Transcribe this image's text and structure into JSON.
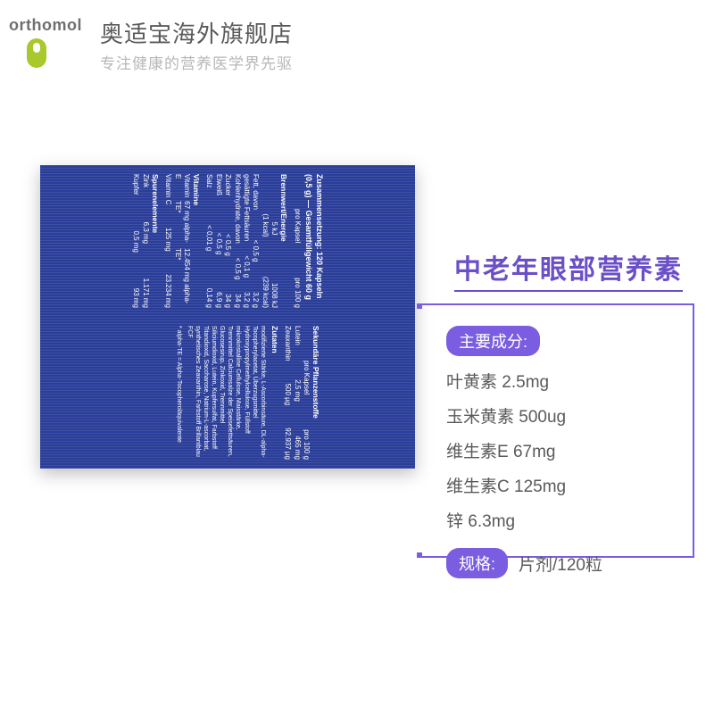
{
  "header": {
    "brand": "orthomol",
    "store_name": "奥适宝海外旗舰店",
    "tagline": "专注健康的营养医学界先驱"
  },
  "product_title": "中老年眼部营养素",
  "panel": {
    "ingredients_label": "主要成分:",
    "ingredients": [
      "叶黄素 2.5mg",
      "玉米黄素 500ug",
      "维生素E 67mg",
      "维生素C 125mg",
      "锌 6.3mg"
    ],
    "spec_label": "规格:",
    "spec_value": "片剂/120粒"
  },
  "nutrition_label": {
    "title": "Zusammensetzung: 120 Kapseln (0,5 g) — Gesamtfüllgewicht 60 g",
    "cols": [
      "",
      "pro Kapsel",
      "pro 100 g"
    ],
    "energy_header": "Brennwert/Energie",
    "energy": [
      [
        "",
        "5 kJ",
        "1008 kJ"
      ],
      [
        "",
        "(1 kcal)",
        "(239 kcal)"
      ]
    ],
    "rows": [
      [
        "Fett, davon",
        "< 0,5 g",
        "3,2 g"
      ],
      [
        "gesättigte Fettsäuren",
        "< 0,1 g",
        "3,2 g"
      ],
      [
        "Kohlenhydrate, davon",
        "< 0,5 g",
        "34 g"
      ],
      [
        "Zucker",
        "< 0,5 g",
        "34 g"
      ],
      [
        "Eiweiß",
        "< 0,5 g",
        "6,9 g"
      ],
      [
        "Salz",
        "< 0,01 g",
        "0,14 g"
      ]
    ],
    "vitamins_header": "Vitamine",
    "vitamins": [
      [
        "Vitamin E",
        "67 mg alpha-TE*",
        "12.454 mg alpha-TE*"
      ],
      [
        "Vitamin C",
        "125 mg",
        "23.234 mg"
      ]
    ],
    "trace_header": "Spurenelemente",
    "trace": [
      [
        "Zink",
        "6,3 mg",
        "1.171 mg"
      ],
      [
        "Kupfer",
        "0,5 mg",
        "93 mg"
      ]
    ],
    "secondary_header": "Sekundäre Pflanzenstoffe",
    "secondary_cols": [
      "",
      "pro Kapsel",
      "pro 100 g"
    ],
    "secondary": [
      [
        "Lutein",
        "2,5 mg",
        "465 mg"
      ],
      [
        "Zeaxanthin",
        "500 µg",
        "92.937 µg"
      ]
    ],
    "zutaten_header": "Zutaten",
    "zutaten": "modifizierte Stärke, L-Ascorbinsäure, DL-alpha-Tocopherylacetat, Überzugsmittel Hydroxypropylmethylcellulose, Füllstoff mikrokristalline Cellulose, Maisstärke, Trennmittel Calciumsalze der Speisefettsäuren, Glucosesirup, Zinkoxid, Trennmittel Siliciumdioxid, Lutein, Kupfersulfat, Farbstoff Titandioxid, Saccharose, Natrium-L-ascorbat, synthetisches Zeaxanthin, Farbstoff Brillantblau FCF",
    "footnote": "* alpha-TE = Alpha-Tocopheroläquivalente"
  },
  "colors": {
    "brand_green": "#a8c82b",
    "text_gray": "#5a5a5a",
    "light_gray": "#b7b7b7",
    "purple": "#7a5de0",
    "purple_text": "#6b4fc7",
    "label_blue": "#2a3d99",
    "white": "#ffffff"
  }
}
